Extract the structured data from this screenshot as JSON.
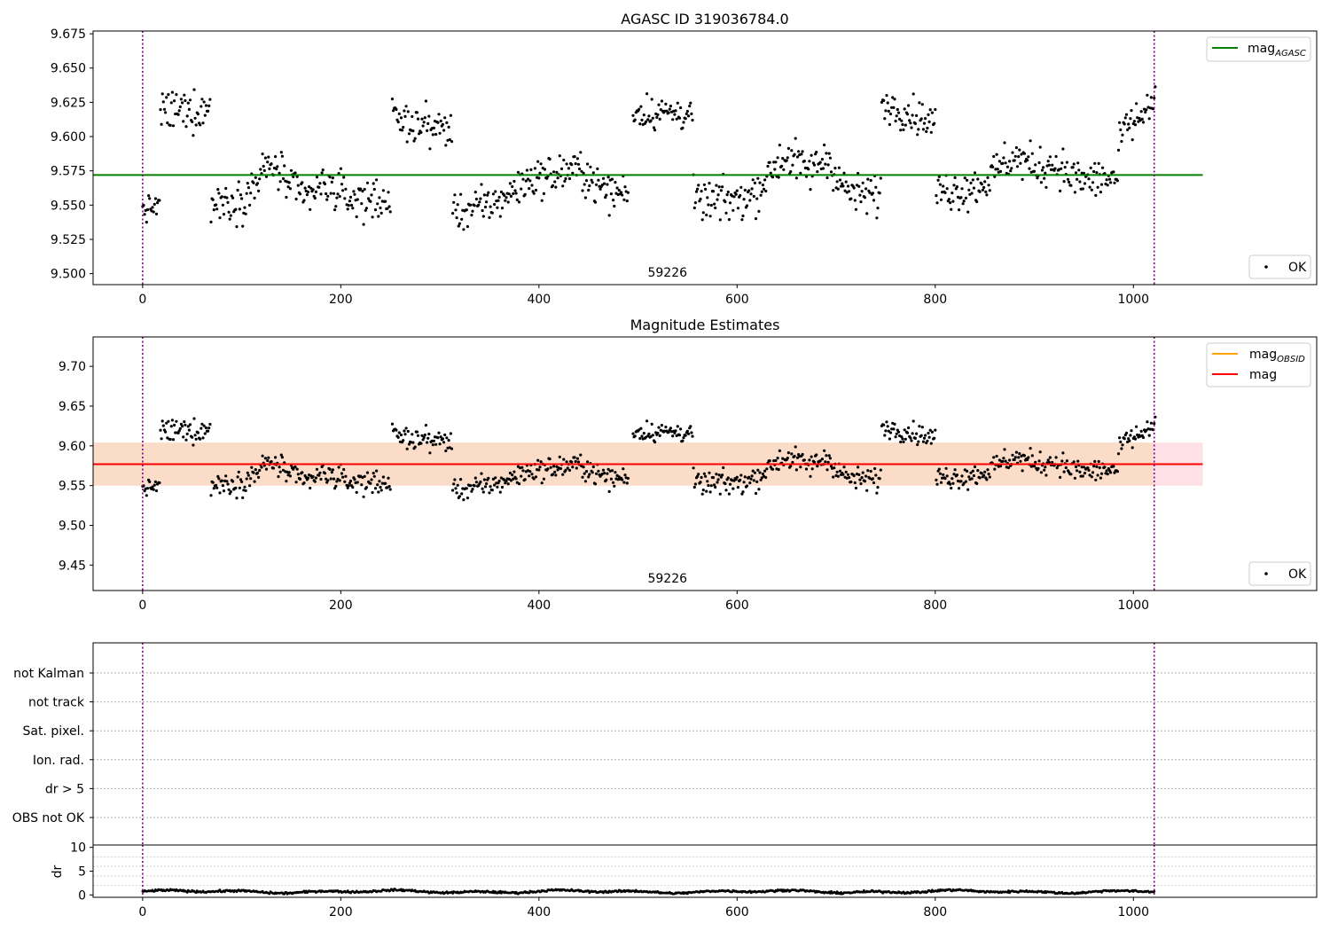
{
  "chart_data": [
    {
      "panel": "agasc",
      "type": "scatter",
      "title": "AGASC ID 319036784.0",
      "xlim": [
        -50,
        1185
      ],
      "ylim": [
        9.492,
        9.677
      ],
      "xticks": [
        0,
        200,
        400,
        600,
        800,
        1000
      ],
      "xtick_labels": [
        "0",
        "200",
        "400",
        "600",
        "800",
        "1000"
      ],
      "yticks": [
        9.5,
        9.525,
        9.55,
        9.575,
        9.6,
        9.625,
        9.65,
        9.675
      ],
      "ytick_labels": [
        "9.500",
        "9.525",
        "9.550",
        "9.575",
        "9.600",
        "9.625",
        "9.650",
        "9.675"
      ],
      "vlines": [
        0,
        1021
      ],
      "obsid_label": {
        "text": "59226",
        "x": 510
      },
      "hline": {
        "name": "mag_AGASC",
        "y": 9.572,
        "x_range": [
          -50,
          1070
        ],
        "color": "#008000"
      },
      "legend_lines": [
        {
          "main": "mag",
          "sub": "AGASC",
          "color": "#008000"
        }
      ],
      "legend_points": [
        {
          "label": "OK"
        }
      ],
      "series": [
        {
          "name": "OK",
          "segments": [
            {
              "x0": 0,
              "x1": 17,
              "y0": 9.546,
              "y1": 9.55,
              "amp": 0.008
            },
            {
              "x0": 18,
              "x1": 68,
              "y0": 9.618,
              "y1": 9.62,
              "amp": 0.013
            },
            {
              "x0": 67,
              "x1": 250,
              "y0": 9.552,
              "y1": 9.555,
              "amp": 0.013,
              "bumps": [
                {
                  "c": 130,
                  "h": 0.025,
                  "w": 20
                },
                {
                  "c": 185,
                  "h": 0.01,
                  "w": 15
                }
              ]
            },
            {
              "x0": 252,
              "x1": 312,
              "y0": 9.612,
              "y1": 9.605,
              "amp": 0.012
            },
            {
              "x0": 313,
              "x1": 490,
              "y0": 9.545,
              "y1": 9.56,
              "amp": 0.012,
              "bumps": [
                {
                  "c": 400,
                  "h": 0.018,
                  "w": 35
                },
                {
                  "c": 440,
                  "h": 0.015,
                  "w": 20
                }
              ]
            },
            {
              "x0": 495,
              "x1": 555,
              "y0": 9.618,
              "y1": 9.617,
              "amp": 0.011
            },
            {
              "x0": 555,
              "x1": 745,
              "y0": 9.552,
              "y1": 9.558,
              "amp": 0.013,
              "bumps": [
                {
                  "c": 650,
                  "h": 0.03,
                  "w": 25
                },
                {
                  "c": 690,
                  "h": 0.025,
                  "w": 15
                }
              ]
            },
            {
              "x0": 745,
              "x1": 800,
              "y0": 9.625,
              "y1": 9.61,
              "amp": 0.011
            },
            {
              "x0": 800,
              "x1": 985,
              "y0": 9.56,
              "y1": 9.57,
              "amp": 0.013,
              "bumps": [
                {
                  "c": 880,
                  "h": 0.02,
                  "w": 25
                },
                {
                  "c": 920,
                  "h": 0.012,
                  "w": 15
                }
              ]
            },
            {
              "x0": 985,
              "x1": 1022,
              "y0": 9.6,
              "y1": 9.625,
              "amp": 0.012
            }
          ]
        }
      ]
    },
    {
      "panel": "estimates",
      "type": "scatter",
      "title": "Magnitude Estimates",
      "xlim": [
        -50,
        1185
      ],
      "ylim": [
        9.418,
        9.737
      ],
      "xticks": [
        0,
        200,
        400,
        600,
        800,
        1000
      ],
      "xtick_labels": [
        "0",
        "200",
        "400",
        "600",
        "800",
        "1000"
      ],
      "yticks": [
        9.45,
        9.5,
        9.55,
        9.6,
        9.65,
        9.7
      ],
      "ytick_labels": [
        "9.45",
        "9.50",
        "9.55",
        "9.60",
        "9.65",
        "9.70"
      ],
      "vlines": [
        0,
        1021
      ],
      "obsid_label": {
        "text": "59226",
        "x": 510
      },
      "band_outer": {
        "y_low": 9.55,
        "y_high": 9.604,
        "x_range": [
          -50,
          1070
        ],
        "color": "#ffe0e6"
      },
      "band_inner": {
        "y_low": 9.55,
        "y_high": 9.604,
        "x_range": [
          -50,
          1020
        ],
        "color": "#fbdcc8"
      },
      "hline": {
        "name": "mag",
        "y": 9.577,
        "x_range": [
          -50,
          1070
        ],
        "color": "#ff0000"
      },
      "legend_lines": [
        {
          "main": "mag",
          "sub": "OBSID",
          "color": "#ffa500"
        },
        {
          "main": "mag",
          "sub": "",
          "color": "#ff0000"
        }
      ],
      "legend_points": [
        {
          "label": "OK"
        }
      ],
      "series": [
        {
          "name": "OK",
          "same_as_panel": "agasc"
        }
      ]
    },
    {
      "panel": "flags",
      "type": "scatter",
      "xlim": [
        -50,
        1185
      ],
      "categories": [
        "not Kalman",
        "not track",
        "Sat. pixel.",
        "Ion. rad.",
        "dr > 5",
        "OBS not OK"
      ],
      "vlines": [
        0,
        1021
      ],
      "series": []
    },
    {
      "panel": "dr",
      "type": "line",
      "xlim": [
        -50,
        1185
      ],
      "ylim": [
        -0.5,
        10.5
      ],
      "ylabel": "dr",
      "yticks": [
        0,
        5,
        10
      ],
      "ytick_labels": [
        "0",
        "5",
        "10"
      ],
      "xticks": [
        0,
        200,
        400,
        600,
        800,
        1000
      ],
      "xtick_labels": [
        "0",
        "200",
        "400",
        "600",
        "800",
        "1000"
      ],
      "vlines": [
        0,
        1021
      ],
      "series": [
        {
          "name": "dr",
          "x_range": [
            0,
            1021
          ],
          "mean": 0.7,
          "amp": 0.35
        }
      ]
    }
  ]
}
